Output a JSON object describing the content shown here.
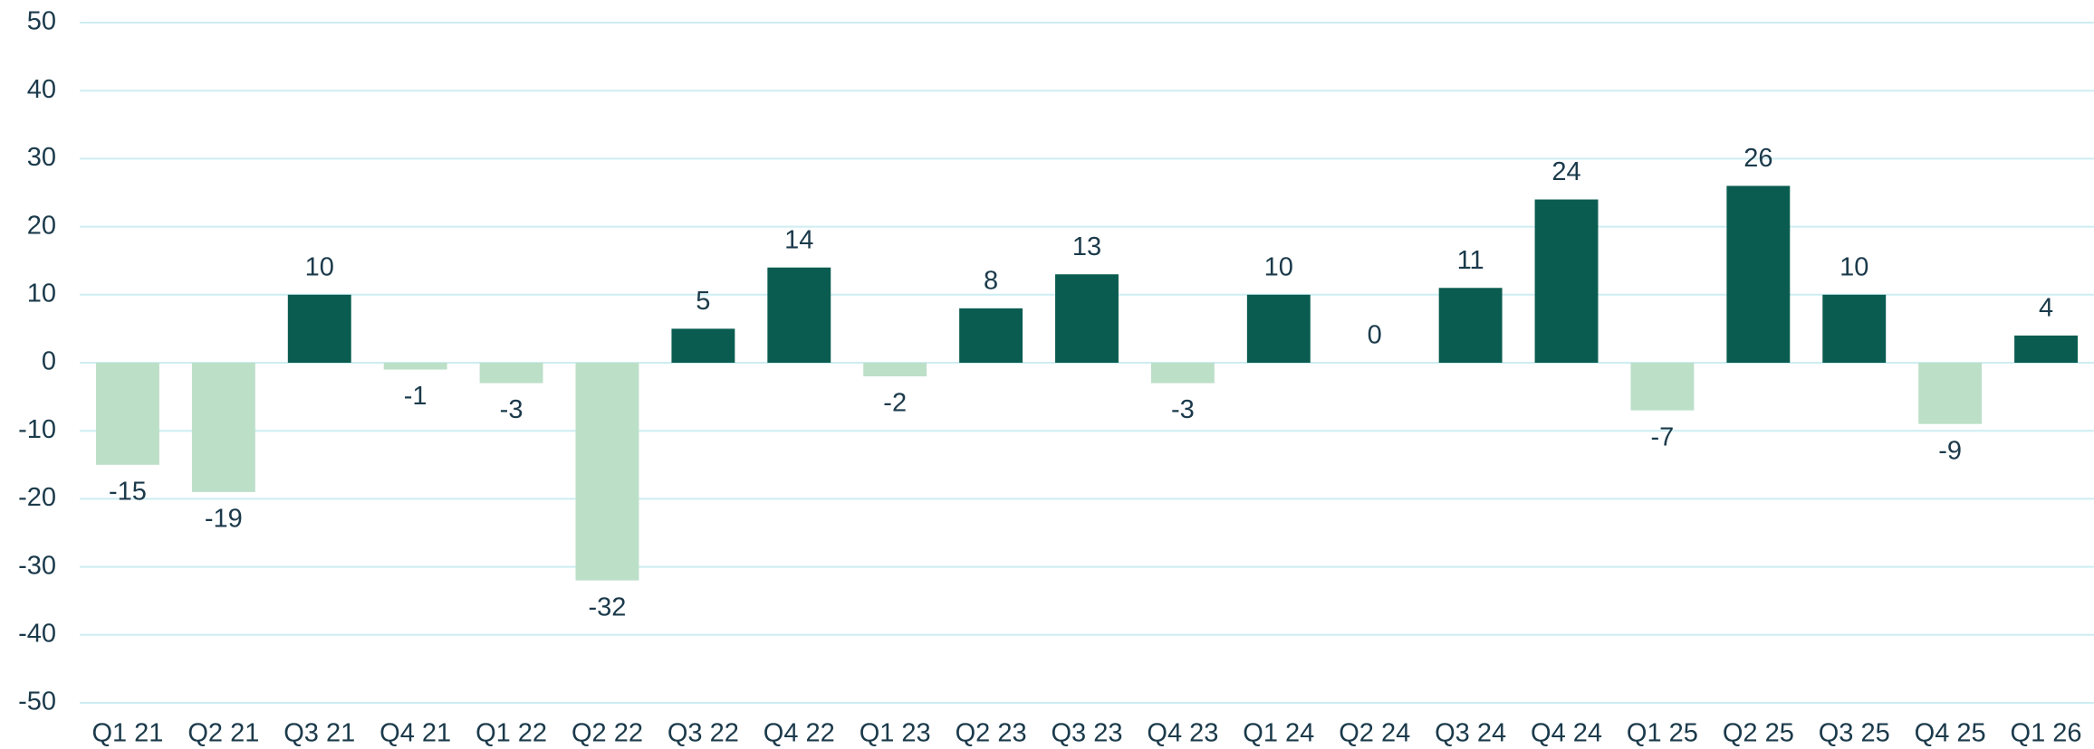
{
  "chart_data": {
    "type": "bar",
    "categories": [
      "Q1 21",
      "Q2 21",
      "Q3 21",
      "Q4 21",
      "Q1 22",
      "Q2 22",
      "Q3 22",
      "Q4 22",
      "Q1 23",
      "Q2 23",
      "Q3 23",
      "Q4 23",
      "Q1 24",
      "Q2 24",
      "Q3 24",
      "Q4 24",
      "Q1 25",
      "Q2 25",
      "Q3 25",
      "Q4 25",
      "Q1 26"
    ],
    "values": [
      -15,
      -19,
      10,
      -1,
      -3,
      -32,
      5,
      14,
      -2,
      8,
      13,
      -3,
      10,
      0,
      11,
      24,
      -7,
      26,
      10,
      -9,
      4
    ],
    "color": "#0a5c50",
    "negative_color": "#bcdfc8",
    "ylim": [
      -50,
      50
    ],
    "yticks": [
      -50,
      -40,
      -30,
      -20,
      -10,
      0,
      10,
      20,
      30,
      40,
      50
    ],
    "grid": true
  }
}
